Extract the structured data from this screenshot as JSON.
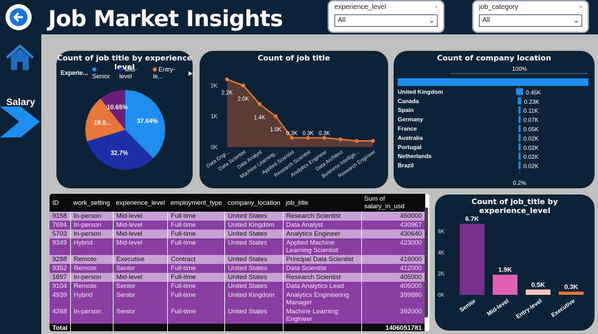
{
  "header": {
    "title": "Job Market Insights",
    "slicers": [
      {
        "label": "experience_level",
        "value": "All"
      },
      {
        "label": "job_category",
        "value": "All"
      }
    ]
  },
  "sidebar": {
    "salary_label": "Salary"
  },
  "pie_chart": {
    "title": "Count of job title by experience level",
    "legend_title": "Experie...",
    "legend": [
      {
        "name": "Senior",
        "color": "#1f8ef1"
      },
      {
        "name": "Mid-level",
        "color": "#1c2fa8"
      },
      {
        "name": "Entry-le...",
        "color": "#e8763a"
      }
    ],
    "labels": [
      "37.64%",
      "32.7%",
      "19.0...",
      "10.65%"
    ]
  },
  "line_chart": {
    "title": "Count of job title",
    "y_ticks": [
      "2K",
      "1K",
      "0K"
    ],
    "data_labels": [
      "2.2K",
      "2.0K",
      "1.4K",
      "1.0K",
      "0.3K",
      "0.3K",
      "0.3K"
    ]
  },
  "bar_h_chart": {
    "title": "Count of company location",
    "top_pct": "100%",
    "bottom_pct": "0.2%"
  },
  "bar_v_chart": {
    "title": "Count of job_title by experience_level",
    "y_ticks": [
      "6K",
      "4K",
      "2K",
      "0K"
    ]
  },
  "table": {
    "columns": [
      "ID",
      "work_setting",
      "experience_level",
      "employment_type",
      "company_location",
      "job_title",
      "Sum of salary_in_usd"
    ],
    "rows": [
      {
        "id": "9158",
        "ws": "In-person",
        "el": "Mid-level",
        "et": "Full-time",
        "cl": "United States",
        "jt": "Research Scientist",
        "sal": "450000"
      },
      {
        "id": "7684",
        "ws": "In-person",
        "el": "Mid-level",
        "et": "Full-time",
        "cl": "United Kingdom",
        "jt": "Data Analyst",
        "sal": "430967"
      },
      {
        "id": "5703",
        "ws": "In-person",
        "el": "Mid-level",
        "et": "Full-time",
        "cl": "United States",
        "jt": "Analytics Engineer",
        "sal": "430640"
      },
      {
        "id": "9349",
        "ws": "Hybrid",
        "el": "Mid-level",
        "et": "Full-time",
        "cl": "United States",
        "jt": "Applied Machine Learning Scientist",
        "sal": "423000"
      },
      {
        "id": "9288",
        "ws": "Remote",
        "el": "Executive",
        "et": "Contract",
        "cl": "United States",
        "jt": "Principal Data Scientist",
        "sal": "416000"
      },
      {
        "id": "9352",
        "ws": "Remote",
        "el": "Senior",
        "et": "Full-time",
        "cl": "United States",
        "jt": "Data Scientist",
        "sal": "412000"
      },
      {
        "id": "1697",
        "ws": "In-person",
        "el": "Mid-level",
        "et": "Full-time",
        "cl": "United States",
        "jt": "Research Scientist",
        "sal": "405000"
      },
      {
        "id": "9104",
        "ws": "Remote",
        "el": "Senior",
        "et": "Full-time",
        "cl": "United States",
        "jt": "Data Analytics Lead",
        "sal": "405000"
      },
      {
        "id": "4939",
        "ws": "Hybrid",
        "el": "Senior",
        "et": "Full-time",
        "cl": "United Kingdom",
        "jt": "Analytics Engineering Manager",
        "sal": "399880"
      },
      {
        "id": "4268",
        "ws": "In-person",
        "el": "Senior",
        "et": "Full-time",
        "cl": "United States",
        "jt": "Machine Learning Engineer",
        "sal": "392000"
      }
    ],
    "total_label": "Total",
    "total_value": "1406051781"
  },
  "chart_data": [
    {
      "type": "pie",
      "title": "Count of job title by experience level",
      "categories": [
        "Senior",
        "Mid-level",
        "Entry-level",
        "Executive"
      ],
      "values": [
        37.64,
        32.7,
        19.0,
        10.65
      ],
      "colors": [
        "#1f8ef1",
        "#1c2fa8",
        "#e8763a",
        "#6b1f7a"
      ]
    },
    {
      "type": "area",
      "title": "Count of job title",
      "categories": [
        "Data Engi...",
        "Data Scientist",
        "Data Analyst",
        "Machine Learning...",
        "Applied Scientist",
        "Research Scientist",
        "Analytics Engineer",
        "Data Architect",
        "Business Intellige...",
        "Research Engineer"
      ],
      "values": [
        2200,
        2000,
        1400,
        1000,
        300,
        300,
        300,
        250,
        200,
        200
      ],
      "ylim": [
        0,
        2500
      ]
    },
    {
      "type": "bar",
      "orientation": "horizontal",
      "title": "Count of company location",
      "categories": [
        "United States",
        "United Kingdom",
        "Canada",
        "Spain",
        "Germany",
        "France",
        "Australia",
        "Portugal",
        "Netherlands",
        "Brazil"
      ],
      "labels": [
        "",
        "0.45K",
        "0.23K",
        "0.11K",
        "0.07K",
        "0.05K",
        "0.02K",
        "0.02K",
        "0.02K",
        "0.02K"
      ],
      "values": [
        8100,
        450,
        230,
        110,
        70,
        50,
        20,
        20,
        20,
        20
      ]
    },
    {
      "type": "bar",
      "title": "Count of job_title by experience_level",
      "categories": [
        "Senior",
        "Mid-level",
        "Entry-level",
        "Executive"
      ],
      "labels": [
        "6.7K",
        "1.9K",
        "0.5K",
        "0.3K"
      ],
      "values": [
        6700,
        1900,
        500,
        300
      ],
      "colors": [
        "#7a2f8c",
        "#e060b8",
        "#f4c7b8",
        "#e8763a"
      ],
      "ylim": [
        0,
        7000
      ]
    }
  ]
}
